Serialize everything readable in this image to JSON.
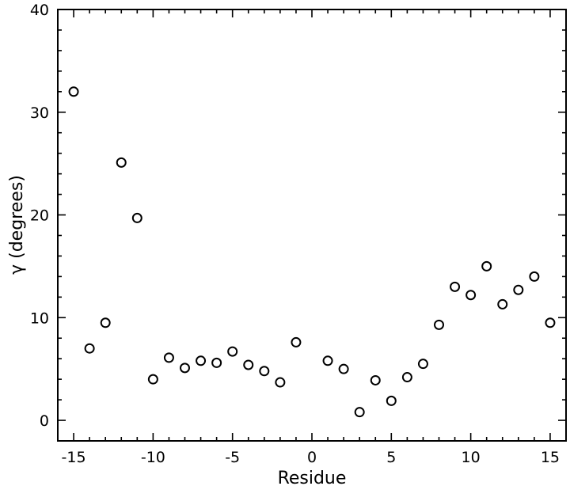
{
  "chart_data": {
    "type": "scatter",
    "title": "",
    "xlabel": "Residue",
    "ylabel": "γ (degrees)",
    "xlim": [
      -16,
      16
    ],
    "ylim": [
      -2,
      40
    ],
    "xticks": [
      -15,
      -10,
      -5,
      0,
      5,
      10,
      15
    ],
    "yticks": [
      0,
      10,
      20,
      30,
      40
    ],
    "xtick_labels": [
      "-15",
      "-10",
      "-5",
      "0",
      "5",
      "10",
      "15"
    ],
    "ytick_labels": [
      "0",
      "10",
      "20",
      "30",
      "40"
    ],
    "grid": false,
    "legend": "none",
    "marker": "open-circle",
    "series": [
      {
        "x": [
          -15,
          -14,
          -13,
          -12,
          -11,
          -10,
          -9,
          -8,
          -7,
          -6,
          -5,
          -4,
          -3,
          -2,
          -1,
          1,
          2,
          3,
          4,
          5,
          6,
          7,
          8,
          9,
          10,
          11,
          12,
          13,
          14,
          15
        ],
        "y": [
          32.0,
          7.0,
          9.5,
          25.1,
          19.7,
          4.0,
          6.1,
          5.1,
          5.8,
          5.6,
          6.7,
          5.4,
          4.8,
          3.7,
          7.6,
          5.8,
          5.0,
          0.8,
          3.9,
          1.9,
          4.2,
          5.5,
          9.3,
          13.0,
          12.2,
          15.0,
          11.3,
          12.7,
          14.0,
          9.5
        ]
      }
    ]
  }
}
